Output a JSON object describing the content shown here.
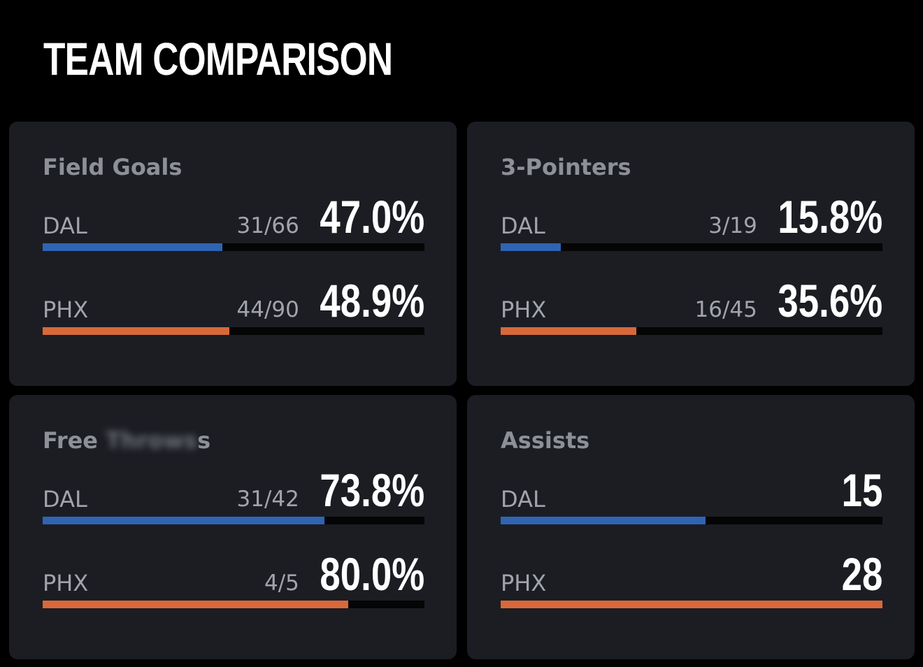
{
  "page": {
    "title": "TEAM COMPARISON"
  },
  "colors": {
    "background": "#000000",
    "card": "#1b1d23",
    "dal_bar": "#2f64b3",
    "phx_bar": "#d8683a",
    "track": "#050505"
  },
  "stats": [
    {
      "title": "Field Goals",
      "dal": {
        "team": "DAL",
        "made": "31/66",
        "value": "47.0%",
        "fill": 0.47
      },
      "phx": {
        "team": "PHX",
        "made": "44/90",
        "value": "48.9%",
        "fill": 0.489
      }
    },
    {
      "title": "3-Pointers",
      "dal": {
        "team": "DAL",
        "made": "3/19",
        "value": "15.8%",
        "fill": 0.158
      },
      "phx": {
        "team": "PHX",
        "made": "16/45",
        "value": "35.6%",
        "fill": 0.356
      }
    },
    {
      "title_visible": "Free",
      "title_blurred": "Throws",
      "title_tail": "s",
      "dal": {
        "team": "DAL",
        "made": "31/42",
        "value": "73.8%",
        "fill": 0.738
      },
      "phx": {
        "team": "PHX",
        "made": "4/5",
        "value": "80.0%",
        "fill": 0.8
      }
    },
    {
      "title": "Assists",
      "dal": {
        "team": "DAL",
        "made": "",
        "value": "15",
        "fill": 0.536
      },
      "phx": {
        "team": "PHX",
        "made": "",
        "value": "28",
        "fill": 1.0
      }
    }
  ]
}
